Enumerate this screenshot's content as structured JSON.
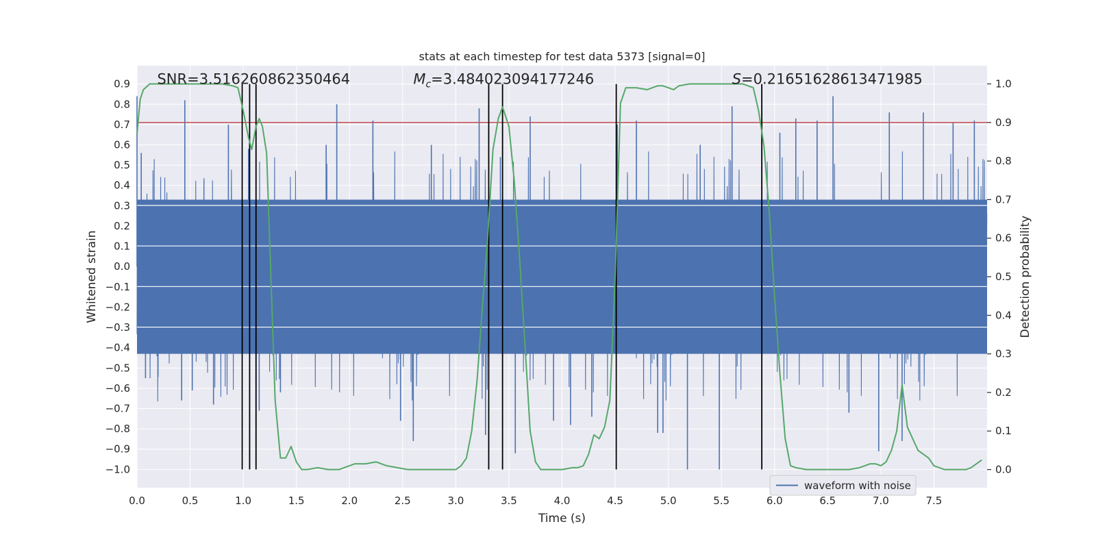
{
  "chart_data": {
    "type": "line",
    "title": "stats at each timestep for test data 5373 [signal=0]",
    "xlabel": "Time (s)",
    "ylabel": "Whitened strain",
    "y2label": "Detection probability",
    "xlim": [
      0.0,
      8.0
    ],
    "ylim": [
      -1.09,
      0.99
    ],
    "y2lim": [
      -0.047,
      1.047
    ],
    "xticks": [
      0.0,
      0.5,
      1.0,
      1.5,
      2.0,
      2.5,
      3.0,
      3.5,
      4.0,
      4.5,
      5.0,
      5.5,
      6.0,
      6.5,
      7.0,
      7.5
    ],
    "xtick_labels": [
      "0.0",
      "0.5",
      "1.0",
      "1.5",
      "2.0",
      "2.5",
      "3.0",
      "3.5",
      "4.0",
      "4.5",
      "5.0",
      "5.5",
      "6.0",
      "6.5",
      "7.0",
      "7.5"
    ],
    "yticks": [
      0.9,
      0.8,
      0.7,
      0.6,
      0.5,
      0.4,
      0.3,
      0.2,
      0.1,
      0.0,
      -0.1,
      -0.2,
      -0.3,
      -0.4,
      -0.5,
      -0.6,
      -0.7,
      -0.8,
      -0.9,
      -1.0
    ],
    "ytick_labels": [
      "0.9",
      "0.8",
      "0.7",
      "0.6",
      "0.5",
      "0.4",
      "0.3",
      "0.2",
      "0.1",
      "0.0",
      "−0.1",
      "−0.2",
      "−0.3",
      "−0.4",
      "−0.5",
      "−0.6",
      "−0.7",
      "−0.8",
      "−0.9",
      "−1.0"
    ],
    "y2ticks": [
      1.0,
      0.9,
      0.8,
      0.7,
      0.6,
      0.5,
      0.4,
      0.3,
      0.2,
      0.1,
      0.0
    ],
    "y2tick_labels": [
      "1.0",
      "0.9",
      "0.8",
      "0.7",
      "0.6",
      "0.5",
      "0.4",
      "0.3",
      "0.2",
      "0.1",
      "0.0"
    ],
    "grid": true,
    "legend": {
      "placement": "lower-right",
      "entries": [
        "waveform with noise"
      ]
    },
    "annotations": [
      {
        "id": "snr",
        "text": "SNR=3.516260862350464",
        "x": 0.19,
        "y": 0.91
      },
      {
        "id": "mc",
        "text": "=3.484023094177246",
        "prefix": "M",
        "sub": "c",
        "x": 2.6,
        "y": 0.91
      },
      {
        "id": "s",
        "text": "=0.21651628613471985",
        "prefix": "S",
        "x": 5.6,
        "y": 0.91
      }
    ],
    "threshold": {
      "axis": "y2",
      "value": 0.9,
      "color": "#c44e52"
    },
    "vlines": [
      0.99,
      1.06,
      1.12,
      3.31,
      3.44,
      4.51,
      5.88
    ],
    "vline_range": [
      -1.0,
      0.9
    ],
    "colors": {
      "waveform": "#4c72b0",
      "probability": "#55a868",
      "threshold": "#c44e52",
      "vline": "#000000",
      "plot_bg": "#eaeaf2",
      "grid": "#ffffff"
    },
    "series": [
      {
        "name": "waveform with noise",
        "axis": "y",
        "kind": "noise",
        "sample_rate": 512,
        "core_range": [
          -0.43,
          0.33
        ],
        "envelope_std": 0.26,
        "spikes": [
          [
            0.0,
            0.84
          ],
          [
            0.04,
            0.56
          ],
          [
            0.45,
            0.82
          ],
          [
            0.08,
            -0.55
          ],
          [
            0.42,
            -0.66
          ],
          [
            0.52,
            -0.61
          ],
          [
            0.72,
            -0.68
          ],
          [
            0.86,
            0.7
          ],
          [
            1.05,
            0.58
          ],
          [
            1.15,
            -0.71
          ],
          [
            1.35,
            -0.62
          ],
          [
            1.78,
            0.6
          ],
          [
            1.88,
            0.8
          ],
          [
            2.22,
            0.72
          ],
          [
            2.48,
            -0.76
          ],
          [
            2.6,
            -0.86
          ],
          [
            2.77,
            0.6
          ],
          [
            3.22,
            0.78
          ],
          [
            3.28,
            -0.83
          ],
          [
            3.42,
            0.54
          ],
          [
            3.56,
            -0.92
          ],
          [
            3.7,
            0.74
          ],
          [
            3.92,
            -0.76
          ],
          [
            4.08,
            -0.78
          ],
          [
            4.28,
            -0.74
          ],
          [
            4.52,
            0.7
          ],
          [
            4.7,
            0.72
          ],
          [
            4.9,
            -0.82
          ],
          [
            4.95,
            -0.82
          ],
          [
            5.18,
            -1.0
          ],
          [
            5.3,
            0.6
          ],
          [
            5.48,
            -1.0
          ],
          [
            5.6,
            0.79
          ],
          [
            6.05,
            0.66
          ],
          [
            6.2,
            0.73
          ],
          [
            6.4,
            0.72
          ],
          [
            6.55,
            0.84
          ],
          [
            6.98,
            -0.91
          ],
          [
            7.08,
            0.76
          ],
          [
            7.2,
            -0.86
          ],
          [
            7.4,
            0.76
          ],
          [
            7.68,
            0.71
          ],
          [
            7.88,
            0.72
          ],
          [
            6.7,
            -0.72
          ]
        ]
      },
      {
        "name": "",
        "axis": "y2",
        "kind": "line",
        "x": [
          0.0,
          0.03,
          0.06,
          0.12,
          0.2,
          0.3,
          0.4,
          0.5,
          0.6,
          0.7,
          0.8,
          0.9,
          0.95,
          1.0,
          1.05,
          1.08,
          1.12,
          1.15,
          1.18,
          1.22,
          1.26,
          1.3,
          1.35,
          1.4,
          1.45,
          1.5,
          1.55,
          1.6,
          1.7,
          1.8,
          1.9,
          2.0,
          2.05,
          2.1,
          2.15,
          2.25,
          2.35,
          2.45,
          2.55,
          2.7,
          2.85,
          3.0,
          3.05,
          3.1,
          3.15,
          3.2,
          3.25,
          3.3,
          3.35,
          3.4,
          3.44,
          3.5,
          3.55,
          3.6,
          3.65,
          3.7,
          3.75,
          3.8,
          3.9,
          4.0,
          4.1,
          4.15,
          4.2,
          4.25,
          4.3,
          4.35,
          4.4,
          4.45,
          4.5,
          4.55,
          4.6,
          4.65,
          4.7,
          4.8,
          4.85,
          4.9,
          4.95,
          5.0,
          5.05,
          5.1,
          5.2,
          5.3,
          5.4,
          5.5,
          5.6,
          5.7,
          5.75,
          5.8,
          5.85,
          5.9,
          5.95,
          6.0,
          6.05,
          6.1,
          6.15,
          6.2,
          6.3,
          6.5,
          6.7,
          6.8,
          6.85,
          6.9,
          6.95,
          7.0,
          7.05,
          7.1,
          7.15,
          7.2,
          7.25,
          7.3,
          7.35,
          7.4,
          7.45,
          7.5,
          7.6,
          7.7,
          7.8,
          7.85,
          7.9,
          7.95
        ],
        "y": [
          0.87,
          0.96,
          0.985,
          1.0,
          1.0,
          1.0,
          1.0,
          1.0,
          1.0,
          1.0,
          1.0,
          0.995,
          0.99,
          0.93,
          0.86,
          0.83,
          0.89,
          0.91,
          0.89,
          0.82,
          0.5,
          0.18,
          0.03,
          0.03,
          0.06,
          0.02,
          0.0,
          0.0,
          0.005,
          0.0,
          0.0,
          0.01,
          0.015,
          0.015,
          0.015,
          0.02,
          0.01,
          0.005,
          0.0,
          0.0,
          0.0,
          0.0,
          0.01,
          0.03,
          0.1,
          0.23,
          0.42,
          0.6,
          0.83,
          0.91,
          0.94,
          0.89,
          0.75,
          0.55,
          0.33,
          0.1,
          0.02,
          0.0,
          0.0,
          0.0,
          0.005,
          0.005,
          0.01,
          0.04,
          0.09,
          0.08,
          0.11,
          0.18,
          0.5,
          0.95,
          0.99,
          0.99,
          0.99,
          0.985,
          0.99,
          0.995,
          0.995,
          0.99,
          0.985,
          0.995,
          1.0,
          1.0,
          1.0,
          1.0,
          1.0,
          1.0,
          0.995,
          0.99,
          0.93,
          0.84,
          0.67,
          0.45,
          0.25,
          0.08,
          0.01,
          0.005,
          0.0,
          0.0,
          0.0,
          0.005,
          0.01,
          0.015,
          0.015,
          0.01,
          0.02,
          0.05,
          0.1,
          0.22,
          0.11,
          0.08,
          0.05,
          0.04,
          0.03,
          0.01,
          0.0,
          0.0,
          0.0,
          0.005,
          0.015,
          0.025
        ]
      }
    ]
  }
}
